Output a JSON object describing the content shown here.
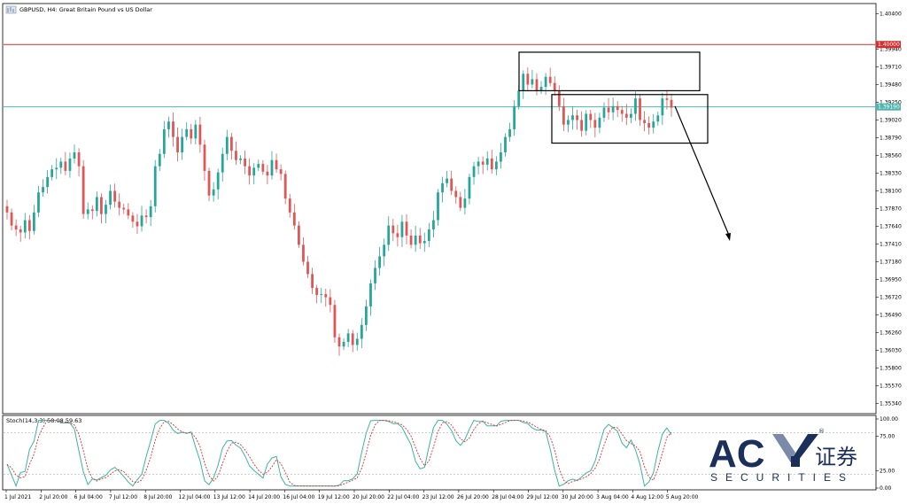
{
  "header": {
    "symbol_title": "GBPUSD, H4:  Great Britain Pound vs US Dollar"
  },
  "indicator": {
    "title": "Stoch(14,3,3) 58.08 59.63",
    "k_color": "#3cb4a0",
    "d_color": "#d93030"
  },
  "colors": {
    "bull": "#26a69a",
    "bear": "#e05555",
    "resistance_line": "#d32f2f",
    "current_line": "#4db6ac",
    "grid": "#b0b0b0",
    "logo": "#1a2f5a"
  },
  "logo": {
    "main": "AC",
    "cn": "证券",
    "sub": "SECURITIES",
    "reg": "®"
  },
  "chart_data": [
    {
      "type": "candlestick",
      "symbol": "GBPUSD",
      "timeframe": "H4",
      "y_ticks": [
        "1.40400",
        "1.39940",
        "1.39710",
        "1.39480",
        "1.39250",
        "1.39020",
        "1.38790",
        "1.38560",
        "1.38330",
        "1.38100",
        "1.37870",
        "1.37640",
        "1.37410",
        "1.37180",
        "1.36950",
        "1.36720",
        "1.36490",
        "1.36260",
        "1.36030",
        "1.35800",
        "1.35570",
        "1.35340"
      ],
      "ylim": [
        1.3522,
        1.4052
      ],
      "x_ticks": [
        "1 Jul 2021",
        "2 Jul 20:00",
        "6 Jul 04:00",
        "7 Jul 12:00",
        "8 Jul 20:00",
        "12 Jul 04:00",
        "13 Jul 12:00",
        "14 Jul 20:00",
        "16 Jul 04:00",
        "19 Jul 12:00",
        "20 Jul 20:00",
        "22 Jul 04:00",
        "23 Jul 12:00",
        "26 Jul 20:00",
        "28 Jul 04:00",
        "29 Jul 12:00",
        "30 Jul 20:00",
        "3 Aug 04:00",
        "4 Aug 12:00",
        "5 Aug 20:00"
      ],
      "horizontal_lines": [
        {
          "price": 1.4,
          "label": "1.40000",
          "color": "#d32f2f"
        },
        {
          "price": 1.3919,
          "label": "1.39190",
          "color": "#4db6ac"
        }
      ],
      "path": [
        1.3782,
        1.3765,
        1.376,
        1.3756,
        1.3772,
        1.3758,
        1.3782,
        1.3808,
        1.3815,
        1.3828,
        1.3838,
        1.384,
        1.3848,
        1.3836,
        1.3852,
        1.386,
        1.3842,
        1.378,
        1.3786,
        1.3784,
        1.3802,
        1.378,
        1.3792,
        1.381,
        1.3796,
        1.3788,
        1.3786,
        1.3778,
        1.377,
        1.3764,
        1.3778,
        1.3776,
        1.379,
        1.3842,
        1.3858,
        1.389,
        1.39,
        1.388,
        1.386,
        1.388,
        1.389,
        1.3878,
        1.3896,
        1.387,
        1.3836,
        1.3804,
        1.3812,
        1.3834,
        1.3858,
        1.388,
        1.3862,
        1.385,
        1.3852,
        1.3842,
        1.383,
        1.384,
        1.3845,
        1.3835,
        1.383,
        1.385,
        1.3838,
        1.3832,
        1.38,
        1.3782,
        1.3765,
        1.374,
        1.3718,
        1.3702,
        1.3684,
        1.3675,
        1.3676,
        1.3672,
        1.3662,
        1.362,
        1.3608,
        1.3614,
        1.3625,
        1.361,
        1.3618,
        1.3636,
        1.366,
        1.369,
        1.371,
        1.3725,
        1.374,
        1.3765,
        1.3755,
        1.375,
        1.377,
        1.3752,
        1.374,
        1.3752,
        1.3742,
        1.3745,
        1.376,
        1.3772,
        1.3808,
        1.382,
        1.3826,
        1.381,
        1.3802,
        1.3788,
        1.38,
        1.3828,
        1.3842,
        1.3848,
        1.3844,
        1.3852,
        1.3838,
        1.3848,
        1.386,
        1.388,
        1.389,
        1.392,
        1.394,
        1.3962,
        1.3948,
        1.3955,
        1.394,
        1.3945,
        1.3958,
        1.395,
        1.394,
        1.392,
        1.3896,
        1.3902,
        1.3908,
        1.3902,
        1.3888,
        1.391,
        1.3902,
        1.3892,
        1.3905,
        1.3918,
        1.3912,
        1.392,
        1.3915,
        1.391,
        1.3905,
        1.391,
        1.393,
        1.3902,
        1.3898,
        1.3892,
        1.39,
        1.3908,
        1.393,
        1.3928,
        1.3918
      ],
      "stochastic": {
        "name": "Stoch(14,3,3)",
        "k": 58.08,
        "d": 59.63,
        "levels": [
          80,
          20
        ],
        "scale_labels": [
          "100.00",
          "75.00",
          "25.00",
          "0.00"
        ]
      },
      "annotations": [
        {
          "type": "rectangle",
          "from": "29 Jul 00:00",
          "to": "29 Jul 20:00",
          "price_range": [
            1.394,
            1.399
          ]
        },
        {
          "type": "rectangle",
          "from": "30 Jul 04:00",
          "to": "5 Aug 20:00",
          "price_range": [
            1.3872,
            1.3935
          ]
        },
        {
          "type": "arrow",
          "direction": "down",
          "from_price": 1.392,
          "to_price": 1.3745
        }
      ]
    }
  ]
}
